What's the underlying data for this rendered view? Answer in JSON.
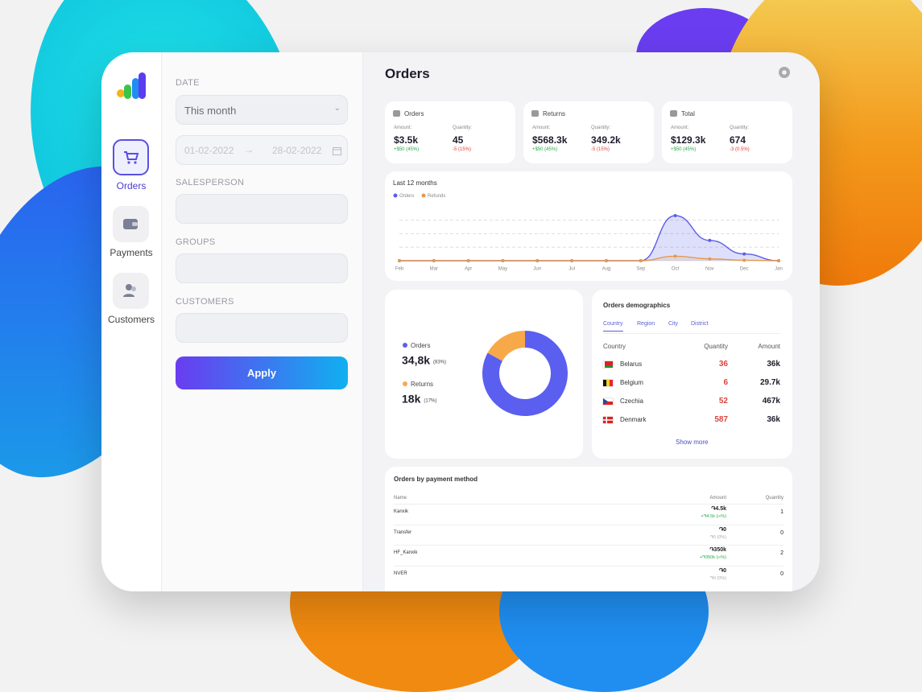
{
  "nav": {
    "items": [
      "Orders",
      "Payments",
      "Customers"
    ]
  },
  "filters": {
    "date_label": "DATE",
    "date_option": "This month",
    "date_from": "01-02-2022",
    "date_to": "28-02-2022",
    "salesperson_label": "SALESPERSON",
    "groups_label": "GROUPS",
    "customers_label": "CUSTOMERS",
    "apply": "Apply"
  },
  "header": {
    "title": "Orders"
  },
  "summary_cards": [
    {
      "title": "Orders",
      "amount_label": "Amount:",
      "amount": "$3.5k",
      "amount_change": "+$50 (45%)",
      "quantity_label": "Quantity:",
      "quantity": "45",
      "quantity_change": "-5 (15%)"
    },
    {
      "title": "Returns",
      "amount_label": "Amount:",
      "amount": "$568.3k",
      "amount_change": "+$50 (45%)",
      "quantity_label": "Quantity:",
      "quantity": "349.2k",
      "quantity_change": "-5 (15%)"
    },
    {
      "title": "Total",
      "amount_label": "Amount:",
      "amount": "$129.3k",
      "amount_change": "+$50 (45%)",
      "quantity_label": "Quantity:",
      "quantity": "674",
      "quantity_change": "-3 (0.5%)"
    }
  ],
  "chart_data": [
    {
      "type": "line",
      "title": "Last 12 months",
      "categories": [
        "Feb",
        "Mar",
        "Apr",
        "May",
        "Jun",
        "Jul",
        "Aug",
        "Sep",
        "Oct",
        "Nov",
        "Dec",
        "Jan"
      ],
      "series": [
        {
          "name": "Orders",
          "color": "#5a5fe6",
          "values": [
            0,
            0,
            0,
            0,
            0,
            0,
            0,
            0,
            100,
            45,
            15,
            0
          ]
        },
        {
          "name": "Refunds",
          "color": "#e39a4f",
          "values": [
            0,
            0,
            0,
            0,
            0,
            0,
            0,
            0,
            10,
            4,
            1,
            0
          ]
        }
      ],
      "ylim": [
        0,
        100
      ],
      "grid": true,
      "area": true
    },
    {
      "type": "donut",
      "categories": [
        "Orders",
        "Returns"
      ],
      "values": [
        83,
        17
      ],
      "value_labels": [
        "(83%)",
        "(17%)"
      ],
      "count_labels": [
        "34,8k",
        "18k"
      ],
      "colors": [
        "#5a5ff0",
        "#f7a94a"
      ]
    }
  ],
  "demographics": {
    "title": "Orders demographics",
    "tabs": [
      "Country",
      "Region",
      "City",
      "District"
    ],
    "columns": [
      "Country",
      "Quantity",
      "Amount"
    ],
    "rows": [
      [
        "Belarus",
        "36",
        "36k"
      ],
      [
        "Belgium",
        "6",
        "29.7k"
      ],
      [
        "Czechia",
        "52",
        "467k"
      ],
      [
        "Denmark",
        "587",
        "36k"
      ]
    ],
    "show_more": "Show more"
  },
  "payments": {
    "title": "Orders by payment method",
    "columns": [
      "Name",
      "Amount",
      "Quantity"
    ],
    "rows": [
      {
        "name": "Kanxik",
        "amount": "֏4.5k",
        "change": "+֏4.5k (∞%)",
        "quantity": "1"
      },
      {
        "name": "Transfer",
        "amount": "֏0",
        "change": "֏0 (0%)",
        "quantity": "0"
      },
      {
        "name": "HF_Kanxik",
        "amount": "֏350k",
        "change": "+֏350k (∞%)",
        "quantity": "2"
      },
      {
        "name": "NVER",
        "amount": "֏0",
        "change": "֏0 (0%)",
        "quantity": "0"
      }
    ]
  }
}
